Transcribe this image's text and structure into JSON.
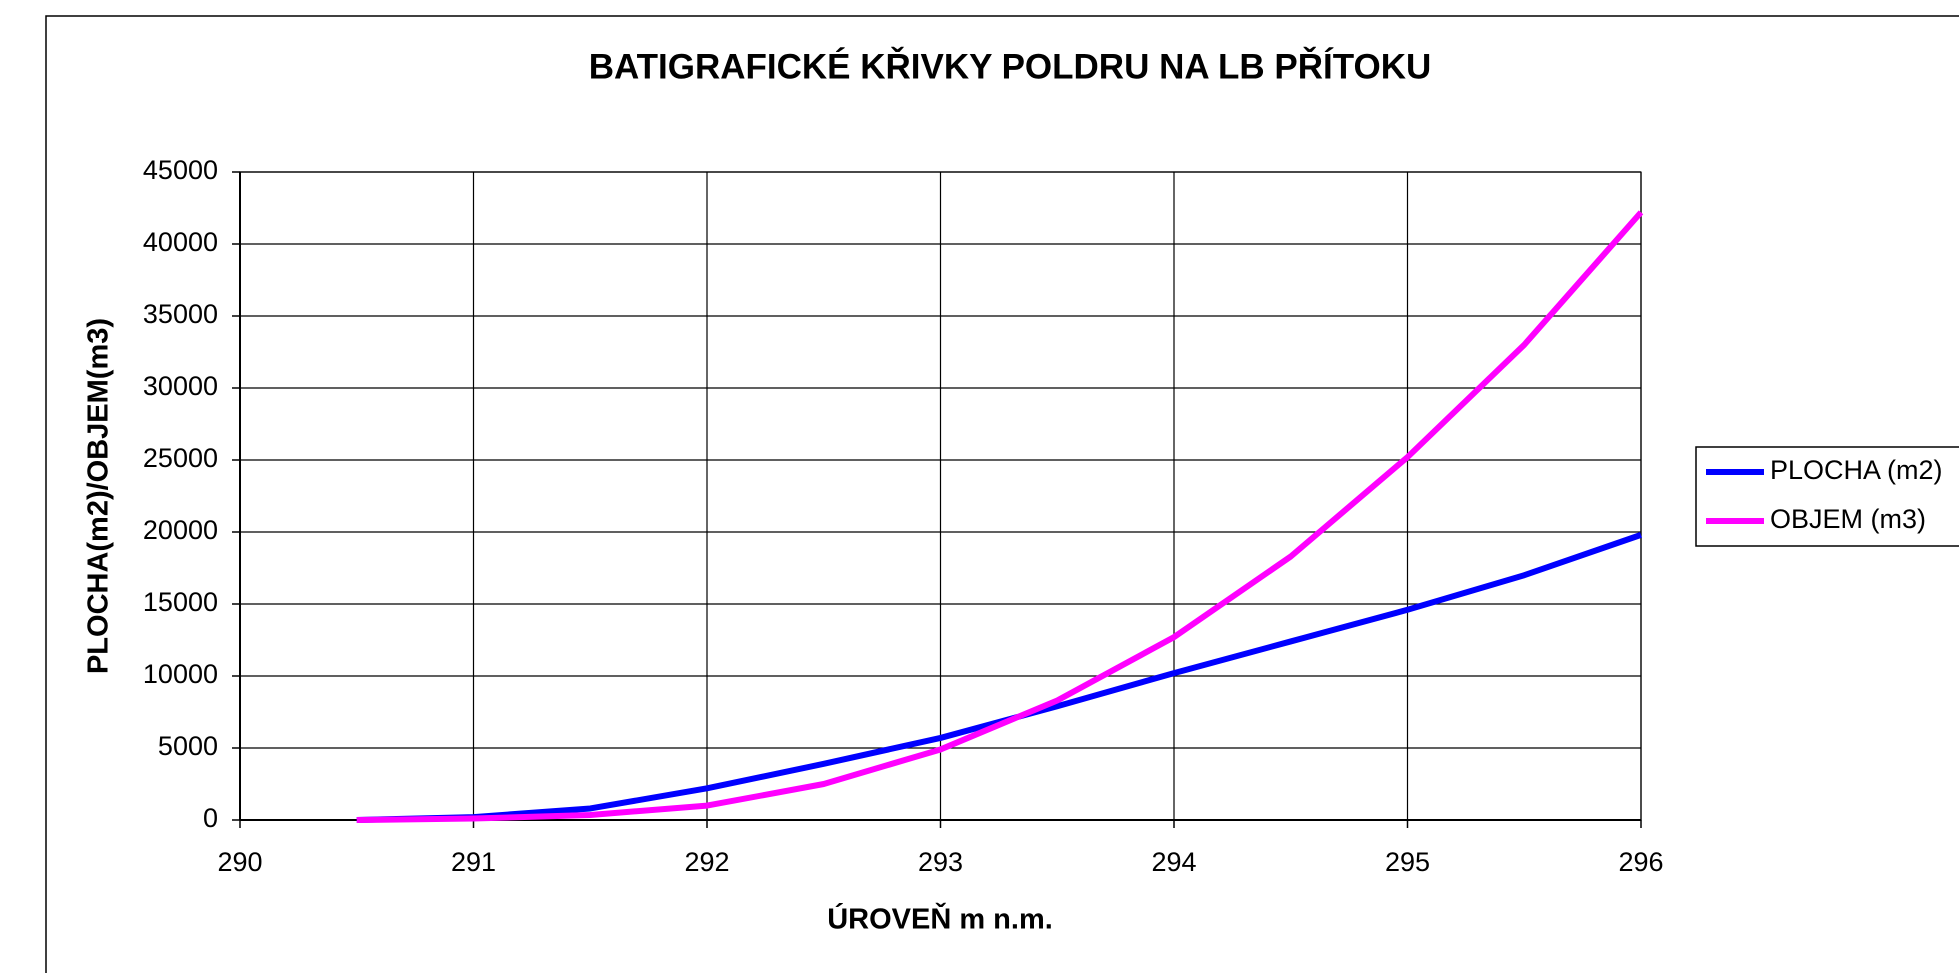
{
  "chart_data": {
    "type": "line",
    "title": "BATIGRAFICKÉ KŘIVKY POLDRU NA LB PŘÍTOKU",
    "x_label": "ÚROVEŇ m n.m.",
    "y_label": "PLOCHA(m2)/OBJEM(m3)",
    "x": [
      290.5,
      291,
      291.5,
      292,
      292.5,
      293,
      293.5,
      294,
      294.5,
      295,
      295.5,
      296
    ],
    "series": [
      {
        "name": "PLOCHA (m2)",
        "color": "#0000ff",
        "values": [
          0,
          200,
          800,
          2200,
          3900,
          5700,
          7900,
          10200,
          12400,
          14600,
          17000,
          19800
        ]
      },
      {
        "name": "OBJEM (m3)",
        "color": "#ff00ff",
        "values": [
          0,
          100,
          350,
          1000,
          2500,
          4900,
          8300,
          12700,
          18300,
          25200,
          33000,
          42200
        ]
      }
    ],
    "xlim": [
      290,
      296
    ],
    "xticks": [
      290,
      291,
      292,
      293,
      294,
      295,
      296
    ],
    "ylim": [
      0,
      45000
    ],
    "yticks": [
      0,
      5000,
      10000,
      15000,
      20000,
      25000,
      30000,
      35000,
      40000,
      45000
    ],
    "grid": true,
    "legend": "right"
  }
}
